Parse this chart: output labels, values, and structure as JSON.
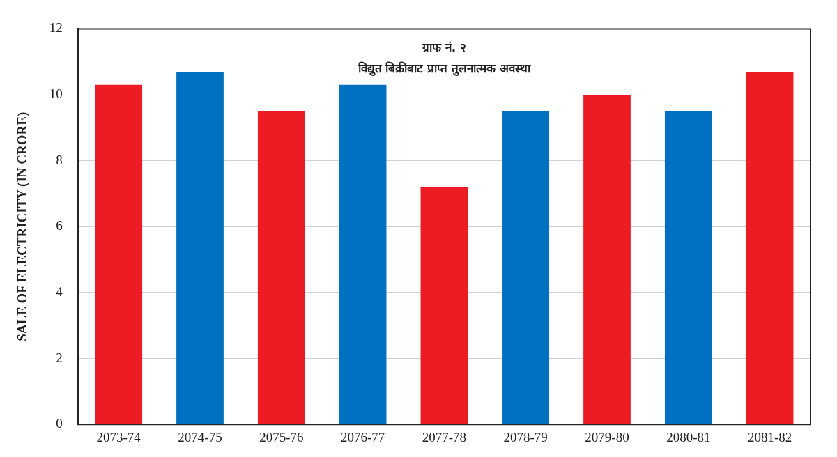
{
  "chart_data": {
    "type": "bar",
    "title": "ग्राफ नं. २",
    "subtitle": "विद्युत बिक्रीबाट प्राप्त तुलनात्मक अवस्था",
    "ylabel": "SALE OF ELECTRICITY (IN CRORE)",
    "categories": [
      "2073-74",
      "2074-75",
      "2075-76",
      "2076-77",
      "2077-78",
      "2078-79",
      "2079-80",
      "2080-81",
      "2081-82"
    ],
    "values": [
      10.3,
      10.7,
      9.5,
      10.3,
      7.2,
      9.5,
      10.0,
      9.5,
      10.7
    ],
    "colors": [
      "#ed1c24",
      "#0070c0",
      "#ed1c24",
      "#0070c0",
      "#ed1c24",
      "#0070c0",
      "#ed1c24",
      "#0070c0",
      "#ed1c24"
    ],
    "ylim": [
      0,
      12
    ],
    "yticks": [
      0,
      2,
      4,
      6,
      8,
      10,
      12
    ],
    "grid": "y"
  }
}
